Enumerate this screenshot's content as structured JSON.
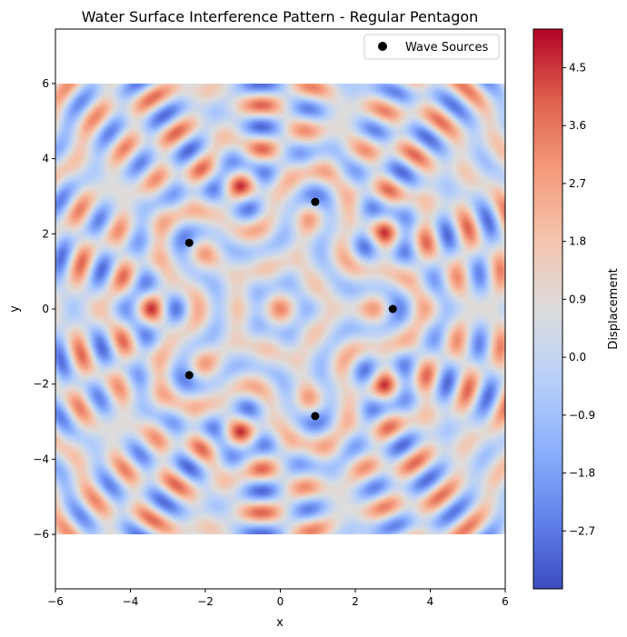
{
  "chart_data": {
    "type": "heatmap",
    "title": "Water Surface Interference Pattern - Regular Pentagon",
    "xlabel": "x",
    "ylabel": "y",
    "xlim": [
      -6,
      6
    ],
    "ylim": [
      -7.45,
      7.45
    ],
    "field_extent": {
      "x": [
        -6,
        6
      ],
      "y": [
        -6,
        6
      ]
    },
    "x_ticks": [
      -6,
      -4,
      -2,
      0,
      2,
      4,
      6
    ],
    "x_tick_labels": [
      "−6",
      "−4",
      "−2",
      "0",
      "2",
      "4",
      "6"
    ],
    "y_ticks": [
      -6,
      -4,
      -2,
      0,
      2,
      4,
      6
    ],
    "y_tick_labels": [
      "−6",
      "−4",
      "−2",
      "0",
      "2",
      "4",
      "6"
    ],
    "colormap": "coolwarm",
    "colorbar": {
      "label": "Displacement",
      "range": [
        -3.6,
        5.1
      ],
      "ticks": [
        -2.7,
        -1.8,
        -0.9,
        0.0,
        0.9,
        1.8,
        2.7,
        3.6,
        4.5
      ],
      "tick_labels": [
        "−2.7",
        "−1.8",
        "−0.9",
        "0.0",
        "0.9",
        "1.8",
        "2.7",
        "3.6",
        "4.5"
      ]
    },
    "wave_sources": {
      "name": "Wave Sources",
      "color": "#000000",
      "points": [
        {
          "x": 3.0,
          "y": 0.0
        },
        {
          "x": 0.93,
          "y": 2.85
        },
        {
          "x": -2.43,
          "y": 1.76
        },
        {
          "x": -2.43,
          "y": -1.76
        },
        {
          "x": 0.93,
          "y": -2.85
        }
      ]
    },
    "legend": {
      "placement": "top-right",
      "entries": [
        "Wave Sources"
      ]
    },
    "grid": false
  }
}
